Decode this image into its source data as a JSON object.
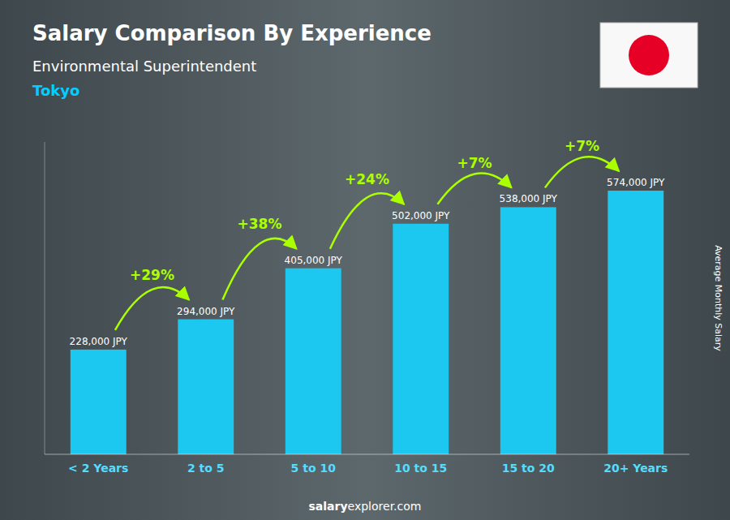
{
  "chart_data": {
    "type": "bar",
    "title": "Salary Comparison By Experience",
    "subtitle": "Environmental Superintendent",
    "location": "Tokyo",
    "ylabel": "Average Monthly Salary",
    "categories": [
      "< 2 Years",
      "2 to 5",
      "5 to 10",
      "10 to 15",
      "15 to 20",
      "20+ Years"
    ],
    "values": [
      228000,
      294000,
      405000,
      502000,
      538000,
      574000
    ],
    "value_labels": [
      "228,000 JPY",
      "294,000 JPY",
      "405,000 JPY",
      "502,000 JPY",
      "538,000 JPY",
      "574,000 JPY"
    ],
    "change_labels": [
      null,
      "+29%",
      "+38%",
      "+24%",
      "+7%",
      "+7%"
    ],
    "footer": [
      "salary",
      "explorer.com"
    ],
    "color": "#1CC8F0",
    "ylim": [
      0,
      680000
    ],
    "data_labels": true,
    "tick_labels": "x",
    "grid": false
  }
}
